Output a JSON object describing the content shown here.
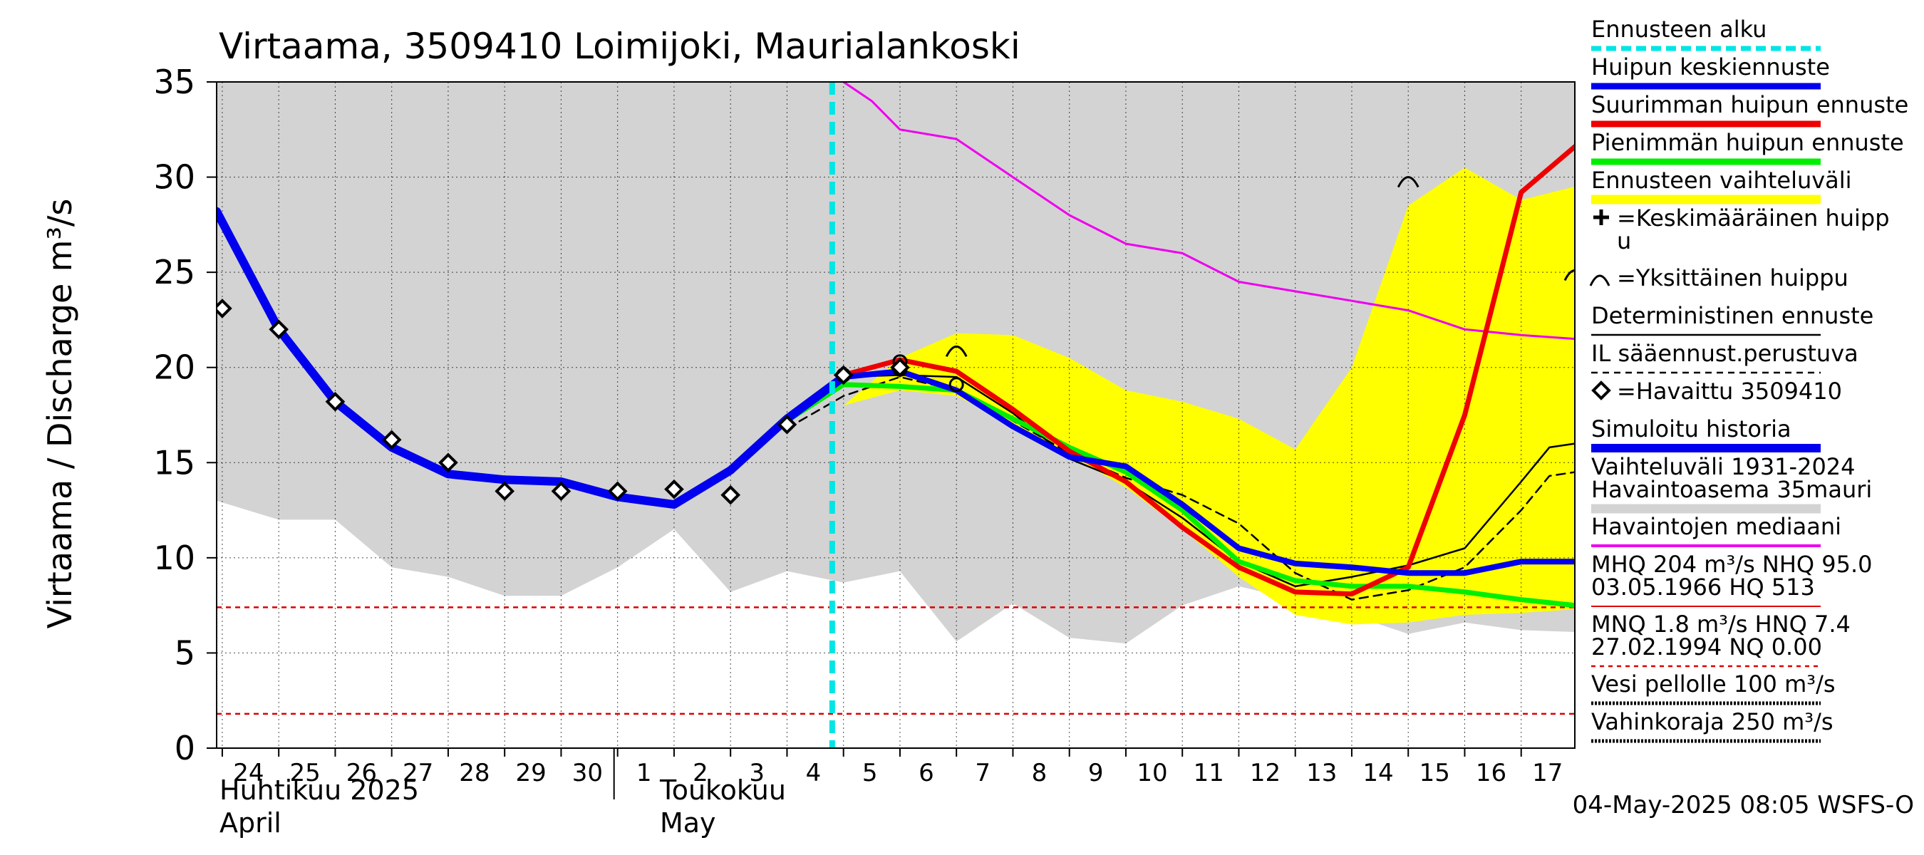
{
  "colors": {
    "grid": "#000000",
    "range_band": "#d3d3d3",
    "forecast_band": "#ffff00",
    "forecast_start": "#00e5e5",
    "mean_peak": "#0000ee",
    "max_peak": "#ee0000",
    "min_peak": "#00ee00",
    "median": "#ee00ee",
    "simulated": "#0000ee",
    "threshold": "#dd0000"
  },
  "chart_data": {
    "type": "line",
    "title": "Virtaama, 3509410 Loimijoki, Maurialankoski",
    "ylabel": "Virtaama / Discharge",
    "yunit": "m³/s",
    "ylim": [
      0,
      35
    ],
    "yticks": [
      0,
      5,
      10,
      15,
      20,
      25,
      30,
      35
    ],
    "xlim_days": [
      -0.1,
      23.95
    ],
    "day_ticks": [
      "24",
      "25",
      "26",
      "27",
      "28",
      "29",
      "30",
      "1",
      "2",
      "3",
      "4",
      "5",
      "6",
      "7",
      "8",
      "9",
      "10",
      "11",
      "12",
      "13",
      "14",
      "15",
      "16",
      "17"
    ],
    "month_labels": [
      {
        "fi": "Huhtikuu  2025",
        "en": "April"
      },
      {
        "fi": "Toukokuu",
        "en": "May"
      }
    ],
    "forecast_start_day": 10.8,
    "footer": "04-May-2025 08:05 WSFS-O",
    "range_band": {
      "upper": [
        [
          -0.1,
          35
        ],
        [
          23.95,
          35
        ]
      ],
      "lower": [
        [
          -0.1,
          13
        ],
        [
          1,
          12
        ],
        [
          2,
          12
        ],
        [
          3,
          9.5
        ],
        [
          4,
          9
        ],
        [
          5,
          8
        ],
        [
          6,
          8
        ],
        [
          7,
          9.5
        ],
        [
          8,
          11.5
        ],
        [
          9,
          8.2
        ],
        [
          10,
          9.3
        ],
        [
          11,
          8.7
        ],
        [
          12,
          9.3
        ],
        [
          13,
          5.6
        ],
        [
          14,
          7.6
        ],
        [
          15,
          5.8
        ],
        [
          16,
          5.5
        ],
        [
          17,
          7.5
        ],
        [
          18,
          8.5
        ],
        [
          19,
          7.8
        ],
        [
          20,
          7.0
        ],
        [
          21,
          6.0
        ],
        [
          22,
          6.6
        ],
        [
          23,
          6.2
        ],
        [
          23.95,
          6.1
        ]
      ]
    },
    "forecast_band": {
      "upper": [
        [
          10.8,
          17.3
        ],
        [
          11,
          18
        ],
        [
          12,
          20.5
        ],
        [
          13,
          21.8
        ],
        [
          14,
          21.7
        ],
        [
          15,
          20.5
        ],
        [
          16,
          18.8
        ],
        [
          17,
          18.2
        ],
        [
          18,
          17.3
        ],
        [
          19,
          15.7
        ],
        [
          20,
          20.0
        ],
        [
          21,
          28.5
        ],
        [
          22,
          30.5
        ],
        [
          23,
          28.8
        ],
        [
          23.95,
          29.5
        ]
      ],
      "lower": [
        [
          23.95,
          7.3
        ],
        [
          23,
          7.1
        ],
        [
          22,
          7.0
        ],
        [
          21,
          6.6
        ],
        [
          20,
          6.5
        ],
        [
          19,
          7.0
        ],
        [
          18,
          9.0
        ],
        [
          17,
          11.5
        ],
        [
          16,
          13.7
        ],
        [
          15,
          15.4
        ],
        [
          14,
          17.0
        ],
        [
          13,
          18.5
        ],
        [
          12,
          18.8
        ],
        [
          11,
          18.0
        ],
        [
          10.8,
          17.3
        ]
      ]
    },
    "series": [
      {
        "key": "median",
        "name": "Havaintojen mediaani",
        "width": 3,
        "dash": "",
        "points": [
          [
            11,
            35
          ],
          [
            11.5,
            34
          ],
          [
            12,
            32.5
          ],
          [
            13,
            32
          ],
          [
            14,
            30
          ],
          [
            15,
            28
          ],
          [
            16,
            26.5
          ],
          [
            17,
            26
          ],
          [
            18,
            24.5
          ],
          [
            19,
            24
          ],
          [
            20,
            23.5
          ],
          [
            21,
            23
          ],
          [
            22,
            22
          ],
          [
            23,
            21.7
          ],
          [
            23.95,
            21.5
          ]
        ]
      },
      {
        "key": "det_dashed",
        "name": "IL sääennust.perustuva",
        "width": 2.5,
        "dash": "12,8",
        "points": [
          [
            10,
            16.8
          ],
          [
            11,
            18.5
          ],
          [
            12,
            19.5
          ],
          [
            13,
            18.8
          ],
          [
            14,
            17.2
          ],
          [
            15,
            15.5
          ],
          [
            16,
            14.2
          ],
          [
            17,
            13.3
          ],
          [
            18,
            11.8
          ],
          [
            19,
            9.2
          ],
          [
            20,
            7.8
          ],
          [
            21,
            8.3
          ],
          [
            22,
            9.5
          ],
          [
            23,
            12.5
          ],
          [
            23.5,
            14.3
          ],
          [
            23.95,
            14.5
          ]
        ]
      },
      {
        "key": "det_solid",
        "name": "Deterministinen ennuste",
        "width": 2.5,
        "dash": "",
        "points": [
          [
            10,
            17.4
          ],
          [
            11,
            19.5
          ],
          [
            12,
            19.6
          ],
          [
            13,
            19.5
          ],
          [
            14,
            17.6
          ],
          [
            15,
            15.2
          ],
          [
            16,
            14.0
          ],
          [
            17,
            12.1
          ],
          [
            18,
            9.8
          ],
          [
            19,
            8.5
          ],
          [
            20,
            9.0
          ],
          [
            21,
            9.6
          ],
          [
            22,
            10.5
          ],
          [
            23,
            14.0
          ],
          [
            23.5,
            15.8
          ],
          [
            23.95,
            16.0
          ]
        ]
      },
      {
        "key": "min_peak",
        "name": "Pienimmän huipun ennuste",
        "width": 7,
        "dash": "",
        "points": [
          [
            10,
            17.2
          ],
          [
            11,
            19.1
          ],
          [
            12,
            19.0
          ],
          [
            13,
            18.8
          ],
          [
            14,
            17.3
          ],
          [
            15,
            15.8
          ],
          [
            16,
            14.5
          ],
          [
            17,
            12.5
          ],
          [
            18,
            9.8
          ],
          [
            19,
            8.8
          ],
          [
            20,
            8.5
          ],
          [
            21,
            8.5
          ],
          [
            22,
            8.2
          ],
          [
            23,
            7.8
          ],
          [
            23.95,
            7.5
          ]
        ]
      },
      {
        "key": "max_peak",
        "name": "Suurimman huipun ennuste",
        "width": 7,
        "dash": "",
        "points": [
          [
            10,
            17.2
          ],
          [
            11,
            19.6
          ],
          [
            12,
            20.4
          ],
          [
            13,
            19.8
          ],
          [
            14,
            17.8
          ],
          [
            15,
            15.6
          ],
          [
            16,
            14.0
          ],
          [
            17,
            11.6
          ],
          [
            18,
            9.5
          ],
          [
            19,
            8.2
          ],
          [
            20,
            8.1
          ],
          [
            21,
            9.5
          ],
          [
            22,
            17.5
          ],
          [
            23,
            29.2
          ],
          [
            23.95,
            31.6
          ]
        ]
      },
      {
        "key": "mean_peak",
        "name": "Huipun keskiennuste",
        "width": 8,
        "dash": "",
        "points": [
          [
            10,
            17.2
          ],
          [
            11,
            19.5
          ],
          [
            12,
            19.8
          ],
          [
            13,
            18.8
          ],
          [
            14,
            16.9
          ],
          [
            15,
            15.3
          ],
          [
            16,
            14.8
          ],
          [
            17,
            12.8
          ],
          [
            18,
            10.5
          ],
          [
            19,
            9.7
          ],
          [
            20,
            9.5
          ],
          [
            21,
            9.2
          ],
          [
            22,
            9.2
          ],
          [
            23,
            9.8
          ],
          [
            23.95,
            9.8
          ]
        ]
      },
      {
        "key": "simulated",
        "name": "Simuloitu historia",
        "width": 12,
        "dash": "",
        "points": [
          [
            -0.1,
            28.2
          ],
          [
            1,
            22.0
          ],
          [
            2,
            18.2
          ],
          [
            3,
            15.8
          ],
          [
            4,
            14.4
          ],
          [
            5,
            14.1
          ],
          [
            6,
            14.0
          ],
          [
            7,
            13.2
          ],
          [
            8,
            12.8
          ],
          [
            9,
            14.6
          ],
          [
            10,
            17.3
          ],
          [
            11,
            19.5
          ]
        ]
      }
    ],
    "observed": {
      "name": "=Havaittu 3509410",
      "points": [
        [
          0,
          23.1
        ],
        [
          1,
          22.0
        ],
        [
          2,
          18.2
        ],
        [
          3,
          16.2
        ],
        [
          4,
          15.0
        ],
        [
          5,
          13.5
        ],
        [
          6,
          13.5
        ],
        [
          7,
          13.5
        ],
        [
          8,
          13.6
        ],
        [
          9,
          13.3
        ],
        [
          10,
          17.0
        ],
        [
          11,
          19.6
        ],
        [
          12,
          20.0
        ]
      ]
    },
    "peak_markers": [
      [
        12,
        20.3
      ],
      [
        11,
        19.6
      ],
      [
        12,
        19.9
      ],
      [
        13,
        19.1
      ]
    ],
    "single_peaks": [
      [
        13,
        20.8
      ],
      [
        21,
        29.7
      ],
      [
        23.95,
        24.8
      ]
    ],
    "threshold_lines": [
      7.4,
      1.8
    ],
    "legend": [
      {
        "label": "Ennusteen alku",
        "style": "cyan-dashed"
      },
      {
        "label": "Huipun keskiennuste",
        "style": "blue"
      },
      {
        "label": "Suurimman huipun ennuste",
        "style": "red"
      },
      {
        "label": "Pienimmän huipun ennuste",
        "style": "green"
      },
      {
        "label": "Ennusteen vaihteluväli",
        "style": "yellow"
      },
      {
        "label": "=Keskimääräinen huipp",
        "label2": "u",
        "style": "plus"
      },
      {
        "label": "=Yksittäinen huippu",
        "style": "arc"
      },
      {
        "label": "Deterministinen ennuste",
        "style": "black"
      },
      {
        "label": "IL sääennust.perustuva",
        "style": "black-dashed"
      },
      {
        "label": "=Havaittu 3509410",
        "style": "diamond"
      },
      {
        "label": "Simuloitu historia",
        "style": "blue-thick"
      },
      {
        "label": "Vaihteluväli 1931-2024",
        "label2": " Havaintoasema 35mauri",
        "style": "grey"
      },
      {
        "label": "Havaintojen mediaani",
        "style": "magenta"
      },
      {
        "label": "MHQ  204 m³/s NHQ 95.0",
        "label2": "03.05.1966 HQ  513",
        "style": "thin-red"
      },
      {
        "label": "MNQ  1.8 m³/s HNQ  7.4",
        "label2": "27.02.1994 NQ 0.00",
        "style": "red-dashed"
      },
      {
        "label": "Vesi pellolle 100 m³/s",
        "style": "black-dotted"
      },
      {
        "label": "Vahinkoraja 250 m³/s",
        "style": "black-dotted"
      }
    ]
  }
}
